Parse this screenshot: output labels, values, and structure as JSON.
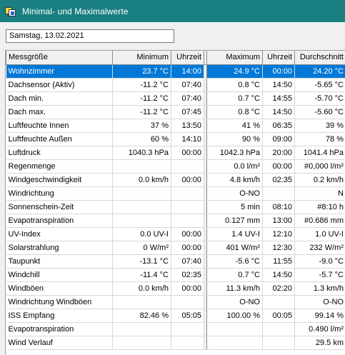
{
  "window": {
    "title": "Minimal- und Maximalwerte"
  },
  "date_field": {
    "value": "Samstag, 13.02.2021"
  },
  "table": {
    "columns": [
      "Messgröße",
      "Minimum",
      "Uhrzeit",
      "Maximum",
      "Uhrzeit",
      "Durchschnitt"
    ],
    "selected_row": 0,
    "rows": [
      [
        "Wohnzimmer",
        "23.7 °C",
        "14:00",
        "24.9 °C",
        "00:00",
        "24.20 °C"
      ],
      [
        "Dachsensor (Aktiv)",
        "-11.2 °C",
        "07:40",
        "0.8 °C",
        "14:50",
        "-5.65 °C"
      ],
      [
        "Dach min.",
        "-11.2 °C",
        "07:40",
        "0.7 °C",
        "14:55",
        "-5.70 °C"
      ],
      [
        "Dach max.",
        "-11.2 °C",
        "07:45",
        "0.8 °C",
        "14:50",
        "-5.60 °C"
      ],
      [
        "Luftfeuchte Innen",
        "37 %",
        "13:50",
        "41 %",
        "06:35",
        "39 %"
      ],
      [
        "Luftfeuchte Außen",
        "60 %",
        "14:10",
        "90 %",
        "09:00",
        "78 %"
      ],
      [
        "Luftdruck",
        "1040.3 hPa",
        "00:00",
        "1042.3 hPa",
        "20:00",
        "1041.4 hPa"
      ],
      [
        "Regenmenge",
        "",
        "",
        "0.0 l/m²",
        "00:00",
        "#0,000 l/m²"
      ],
      [
        "Windgeschwindigkeit",
        "0.0 km/h",
        "00:00",
        "4.8 km/h",
        "02:35",
        "0.2 km/h"
      ],
      [
        "Windrichtung",
        "",
        "",
        "O-NO",
        "",
        "N"
      ],
      [
        "Sonnenschein-Zeit",
        "",
        "",
        "5 min",
        "08:10",
        "#8:10 h"
      ],
      [
        "Evapotranspiration",
        "",
        "",
        "0.127 mm",
        "13:00",
        "#0.686 mm"
      ],
      [
        "UV-Index",
        "0.0 UV-I",
        "00:00",
        "1.4 UV-I",
        "12:10",
        "1.0 UV-I"
      ],
      [
        "Solarstrahlung",
        "0 W/m²",
        "00:00",
        "401 W/m²",
        "12:30",
        "232 W/m²"
      ],
      [
        "Taupunkt",
        "-13.1 °C",
        "07:40",
        "-5.6 °C",
        "11:55",
        "-9.0 °C"
      ],
      [
        "Windchill",
        "-11.4 °C",
        "02:35",
        "0.7 °C",
        "14:50",
        "-5.7 °C"
      ],
      [
        "Windböen",
        "0.0 km/h",
        "00:00",
        "11.3 km/h",
        "02:20",
        "1.3 km/h"
      ],
      [
        "Windrichtung Windböen",
        "",
        "",
        "O-NO",
        "",
        "O-NO"
      ],
      [
        "ISS Empfang",
        "82.46 %",
        "05:05",
        "100.00 %",
        "00:05",
        "99.14 %"
      ],
      [
        "Evapotranspiration",
        "",
        "",
        "",
        "",
        "0.490 l/m²"
      ],
      [
        "Wind Verlauf",
        "",
        "",
        "",
        "",
        "29.5 km"
      ]
    ]
  }
}
